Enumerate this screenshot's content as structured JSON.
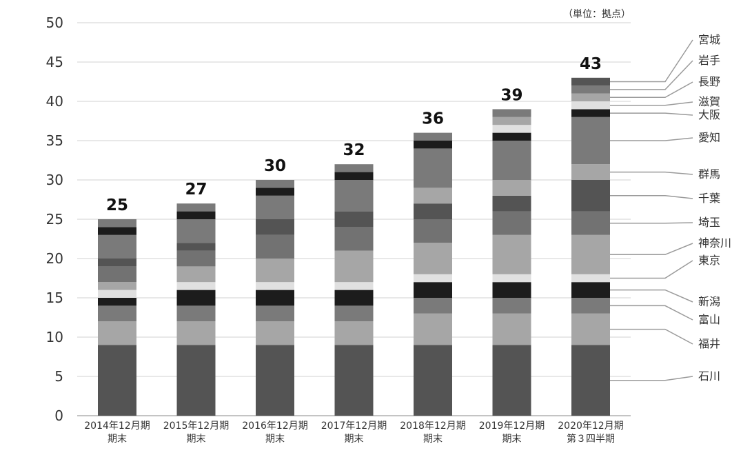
{
  "chart_data": {
    "type": "bar",
    "stacked": true,
    "unit_note": "（単位：拠点）",
    "ylim": [
      0,
      50
    ],
    "yticks": [
      0,
      5,
      10,
      15,
      20,
      25,
      30,
      35,
      40,
      45,
      50
    ],
    "grid": true,
    "categories": [
      [
        "2014年12月期",
        "期末"
      ],
      [
        "2015年12月期",
        "期末"
      ],
      [
        "2016年12月期",
        "期末"
      ],
      [
        "2017年12月期",
        "期末"
      ],
      [
        "2018年12月期",
        "期末"
      ],
      [
        "2019年12月期",
        "期末"
      ],
      [
        "2020年12月期",
        "第３四半期"
      ]
    ],
    "totals": [
      25,
      27,
      30,
      32,
      36,
      39,
      43
    ],
    "series": [
      {
        "name": "石川",
        "color": "#545454",
        "values": [
          9,
          9,
          9,
          9,
          9,
          9,
          9
        ]
      },
      {
        "name": "福井",
        "color": "#a6a6a6",
        "values": [
          3,
          3,
          3,
          3,
          4,
          4,
          4
        ]
      },
      {
        "name": "富山",
        "color": "#7a7a7a",
        "values": [
          2,
          2,
          2,
          2,
          2,
          2,
          2
        ]
      },
      {
        "name": "新潟",
        "color": "#1c1c1c",
        "values": [
          1,
          2,
          2,
          2,
          2,
          2,
          2
        ]
      },
      {
        "name": "東京",
        "color": "#e0e0e0",
        "values": [
          1,
          1,
          1,
          1,
          1,
          1,
          1
        ]
      },
      {
        "name": "神奈川",
        "color": "#a6a6a6",
        "values": [
          1,
          2,
          3,
          4,
          4,
          5,
          5
        ]
      },
      {
        "name": "埼玉",
        "color": "#727272",
        "values": [
          2,
          2,
          3,
          3,
          3,
          3,
          3
        ]
      },
      {
        "name": "千葉",
        "color": "#545454",
        "values": [
          1,
          1,
          2,
          2,
          2,
          2,
          4
        ]
      },
      {
        "name": "群馬",
        "color": "#a6a6a6",
        "values": [
          0,
          0,
          0,
          0,
          2,
          2,
          2
        ]
      },
      {
        "name": "愛知",
        "color": "#7a7a7a",
        "values": [
          3,
          3,
          3,
          4,
          5,
          5,
          6
        ]
      },
      {
        "name": "大阪",
        "color": "#1c1c1c",
        "values": [
          1,
          1,
          1,
          1,
          1,
          1,
          1
        ]
      },
      {
        "name": "滋賀",
        "color": "#e0e0e0",
        "values": [
          0,
          0,
          0,
          0,
          0,
          1,
          1
        ]
      },
      {
        "name": "長野",
        "color": "#a6a6a6",
        "values": [
          0,
          0,
          0,
          0,
          0,
          1,
          1
        ]
      },
      {
        "name": "岩手",
        "color": "#7a7a7a",
        "values": [
          1,
          1,
          1,
          1,
          1,
          1,
          1
        ]
      },
      {
        "name": "宮城",
        "color": "#545454",
        "values": [
          0,
          0,
          0,
          0,
          0,
          0,
          1
        ]
      }
    ]
  }
}
